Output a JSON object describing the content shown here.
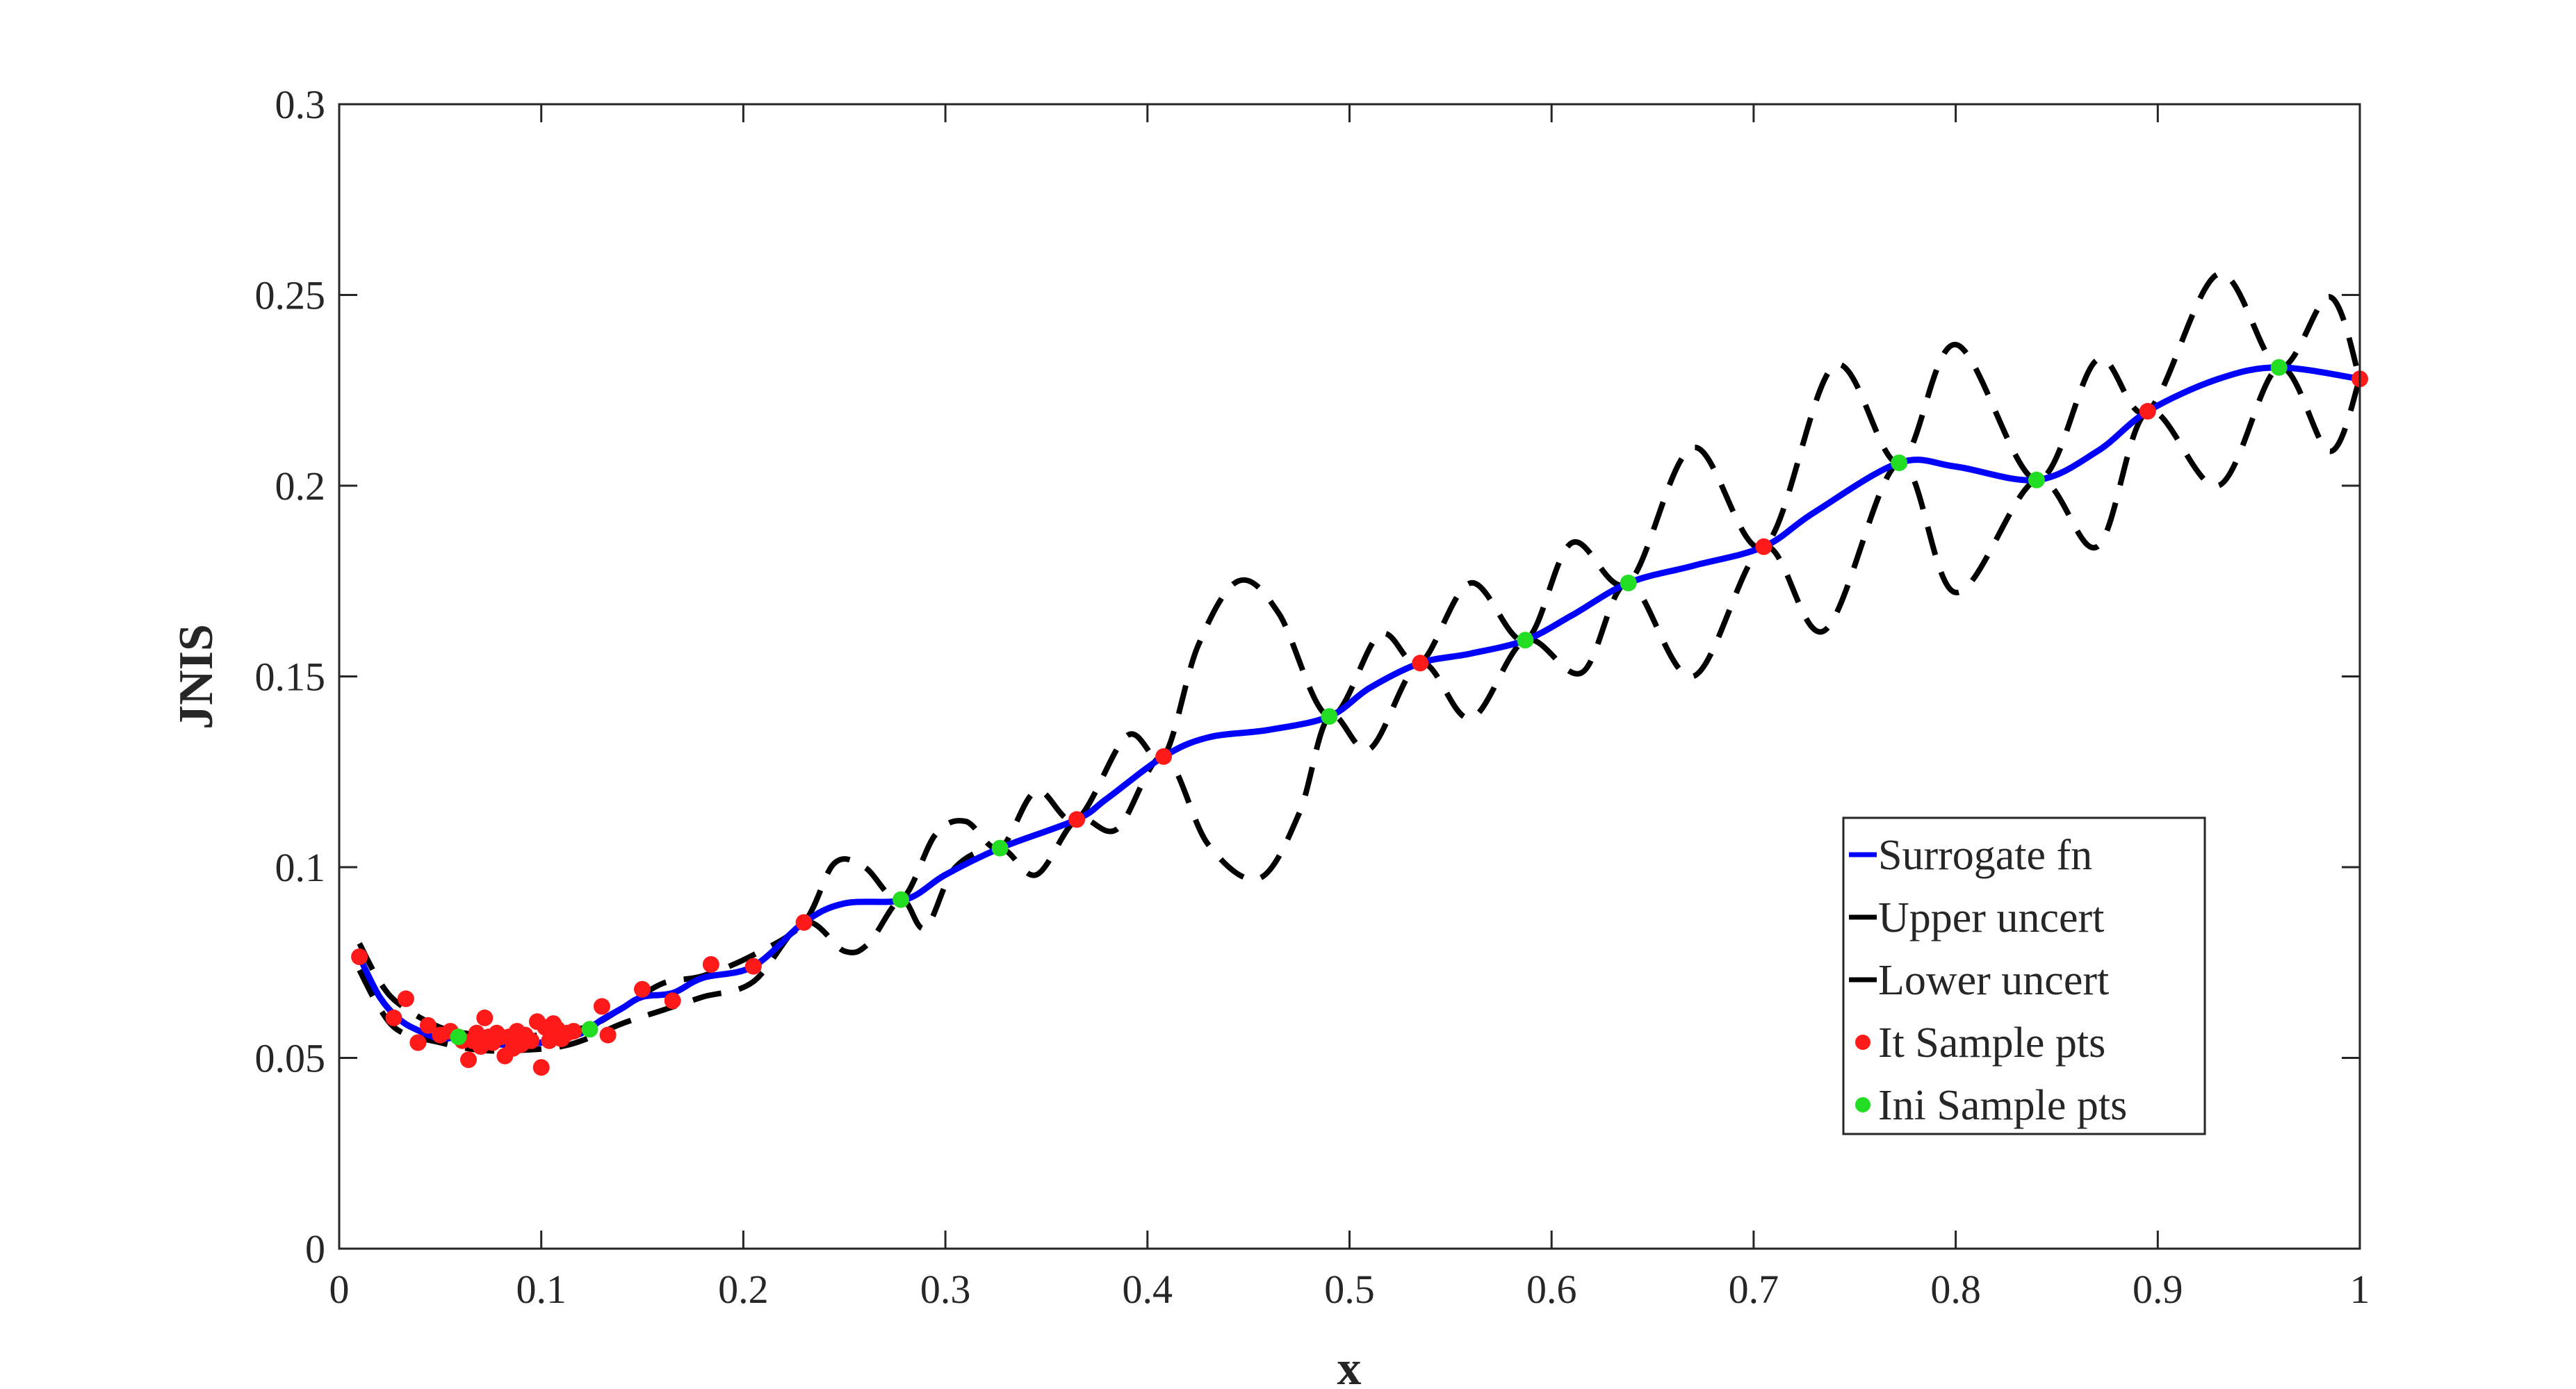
{
  "chart_data": {
    "type": "line",
    "title": "",
    "xlabel": "x",
    "ylabel": "JNIS",
    "xlim": [
      0,
      1
    ],
    "ylim": [
      0,
      0.3
    ],
    "x_ticks": [
      0,
      0.1,
      0.2,
      0.3,
      0.4,
      0.5,
      0.6,
      0.7,
      0.8,
      0.9,
      1
    ],
    "x_tick_labels": [
      "0",
      "0.1",
      "0.2",
      "0.3",
      "0.4",
      "0.5",
      "0.6",
      "0.7",
      "0.8",
      "0.9",
      "1"
    ],
    "y_ticks": [
      0,
      0.05,
      0.1,
      0.15,
      0.2,
      0.25,
      0.3
    ],
    "y_tick_labels": [
      "0",
      "0.05",
      "0.1",
      "0.15",
      "0.2",
      "0.25",
      "0.3"
    ],
    "grid": false,
    "legend_position": "lower-right inside",
    "series": [
      {
        "name": "Surrogate fn",
        "style": "solid",
        "color": "#0000ff",
        "x": [
          0.01,
          0.02,
          0.03,
          0.04,
          0.05,
          0.06,
          0.07,
          0.08,
          0.09,
          0.1,
          0.11,
          0.12,
          0.13,
          0.14,
          0.15,
          0.165,
          0.18,
          0.205,
          0.23,
          0.25,
          0.28,
          0.3,
          0.327,
          0.365,
          0.38,
          0.408,
          0.43,
          0.46,
          0.49,
          0.51,
          0.535,
          0.56,
          0.587,
          0.61,
          0.638,
          0.67,
          0.705,
          0.73,
          0.772,
          0.8,
          0.84,
          0.87,
          0.895,
          0.93,
          0.96,
          1.0
        ],
        "y": [
          0.0765,
          0.066,
          0.06,
          0.057,
          0.055,
          0.0555,
          0.054,
          0.0535,
          0.0535,
          0.054,
          0.055,
          0.0565,
          0.06,
          0.063,
          0.066,
          0.067,
          0.071,
          0.074,
          0.0855,
          0.0905,
          0.0915,
          0.098,
          0.105,
          0.1125,
          0.118,
          0.129,
          0.134,
          0.136,
          0.1395,
          0.147,
          0.1535,
          0.156,
          0.1595,
          0.166,
          0.1745,
          0.179,
          0.184,
          0.193,
          0.206,
          0.205,
          0.2015,
          0.209,
          0.2195,
          0.228,
          0.231,
          0.228
        ]
      },
      {
        "name": "Upper uncert",
        "style": "dashed",
        "color": "#000000",
        "x": [
          0.01,
          0.02,
          0.03,
          0.05,
          0.07,
          0.09,
          0.11,
          0.125,
          0.14,
          0.16,
          0.18,
          0.205,
          0.23,
          0.245,
          0.26,
          0.278,
          0.295,
          0.31,
          0.327,
          0.345,
          0.365,
          0.39,
          0.408,
          0.425,
          0.445,
          0.465,
          0.49,
          0.515,
          0.535,
          0.56,
          0.587,
          0.61,
          0.638,
          0.67,
          0.705,
          0.74,
          0.772,
          0.8,
          0.84,
          0.87,
          0.895,
          0.93,
          0.96,
          0.985,
          1.0
        ],
        "y": [
          0.08,
          0.07,
          0.064,
          0.058,
          0.056,
          0.0555,
          0.057,
          0.0585,
          0.063,
          0.0695,
          0.0715,
          0.077,
          0.0855,
          0.101,
          0.1,
          0.0915,
          0.1085,
          0.112,
          0.105,
          0.12,
          0.1125,
          0.1345,
          0.129,
          0.158,
          0.175,
          0.1665,
          0.1395,
          0.161,
          0.1535,
          0.1745,
          0.1595,
          0.185,
          0.1745,
          0.21,
          0.184,
          0.2315,
          0.206,
          0.237,
          0.2015,
          0.233,
          0.2195,
          0.2555,
          0.231,
          0.2495,
          0.228
        ]
      },
      {
        "name": "Lower uncert",
        "style": "dashed",
        "color": "#000000",
        "x": [
          0.01,
          0.02,
          0.03,
          0.05,
          0.07,
          0.09,
          0.11,
          0.125,
          0.14,
          0.16,
          0.18,
          0.205,
          0.23,
          0.25,
          0.262,
          0.278,
          0.29,
          0.305,
          0.327,
          0.345,
          0.365,
          0.385,
          0.408,
          0.43,
          0.455,
          0.475,
          0.49,
          0.51,
          0.535,
          0.56,
          0.587,
          0.615,
          0.638,
          0.67,
          0.705,
          0.735,
          0.772,
          0.8,
          0.84,
          0.87,
          0.895,
          0.93,
          0.96,
          0.985,
          1.0
        ],
        "y": [
          0.073,
          0.063,
          0.057,
          0.054,
          0.052,
          0.052,
          0.053,
          0.0555,
          0.059,
          0.0625,
          0.066,
          0.07,
          0.0855,
          0.078,
          0.08,
          0.0915,
          0.084,
          0.1,
          0.105,
          0.098,
          0.1125,
          0.11,
          0.129,
          0.106,
          0.097,
          0.114,
          0.1395,
          0.131,
          0.1535,
          0.139,
          0.1595,
          0.151,
          0.1745,
          0.15,
          0.184,
          0.162,
          0.206,
          0.172,
          0.2015,
          0.184,
          0.2195,
          0.2,
          0.231,
          0.209,
          0.228
        ]
      }
    ],
    "points": [
      {
        "name": "It Sample pts",
        "color": "#ff1a1a",
        "x": [
          0.01,
          0.027,
          0.033,
          0.039,
          0.044,
          0.05,
          0.055,
          0.061,
          0.064,
          0.066,
          0.068,
          0.07,
          0.072,
          0.074,
          0.076,
          0.078,
          0.08,
          0.082,
          0.084,
          0.086,
          0.088,
          0.09,
          0.092,
          0.095,
          0.098,
          0.1,
          0.102,
          0.104,
          0.106,
          0.108,
          0.11,
          0.113,
          0.116,
          0.13,
          0.133,
          0.15,
          0.165,
          0.184,
          0.205,
          0.23,
          0.365,
          0.408,
          0.535,
          0.705,
          0.895,
          1.0
        ],
        "y": [
          0.0765,
          0.0605,
          0.0655,
          0.054,
          0.0585,
          0.056,
          0.057,
          0.0545,
          0.0495,
          0.0545,
          0.0565,
          0.053,
          0.0605,
          0.0555,
          0.054,
          0.0565,
          0.0555,
          0.0505,
          0.0555,
          0.0525,
          0.057,
          0.0535,
          0.056,
          0.0545,
          0.0595,
          0.0475,
          0.058,
          0.0545,
          0.059,
          0.0575,
          0.055,
          0.0565,
          0.057,
          0.0635,
          0.056,
          0.068,
          0.065,
          0.0745,
          0.074,
          0.0855,
          0.1125,
          0.129,
          0.1535,
          0.184,
          0.2195,
          0.228
        ]
      },
      {
        "name": "Ini Sample pts",
        "color": "#22dd22",
        "x": [
          0.059,
          0.124,
          0.278,
          0.327,
          0.49,
          0.587,
          0.638,
          0.772,
          0.84,
          0.96
        ],
        "y": [
          0.0555,
          0.0575,
          0.0915,
          0.105,
          0.1395,
          0.1595,
          0.1745,
          0.206,
          0.2015,
          0.231
        ]
      }
    ]
  }
}
